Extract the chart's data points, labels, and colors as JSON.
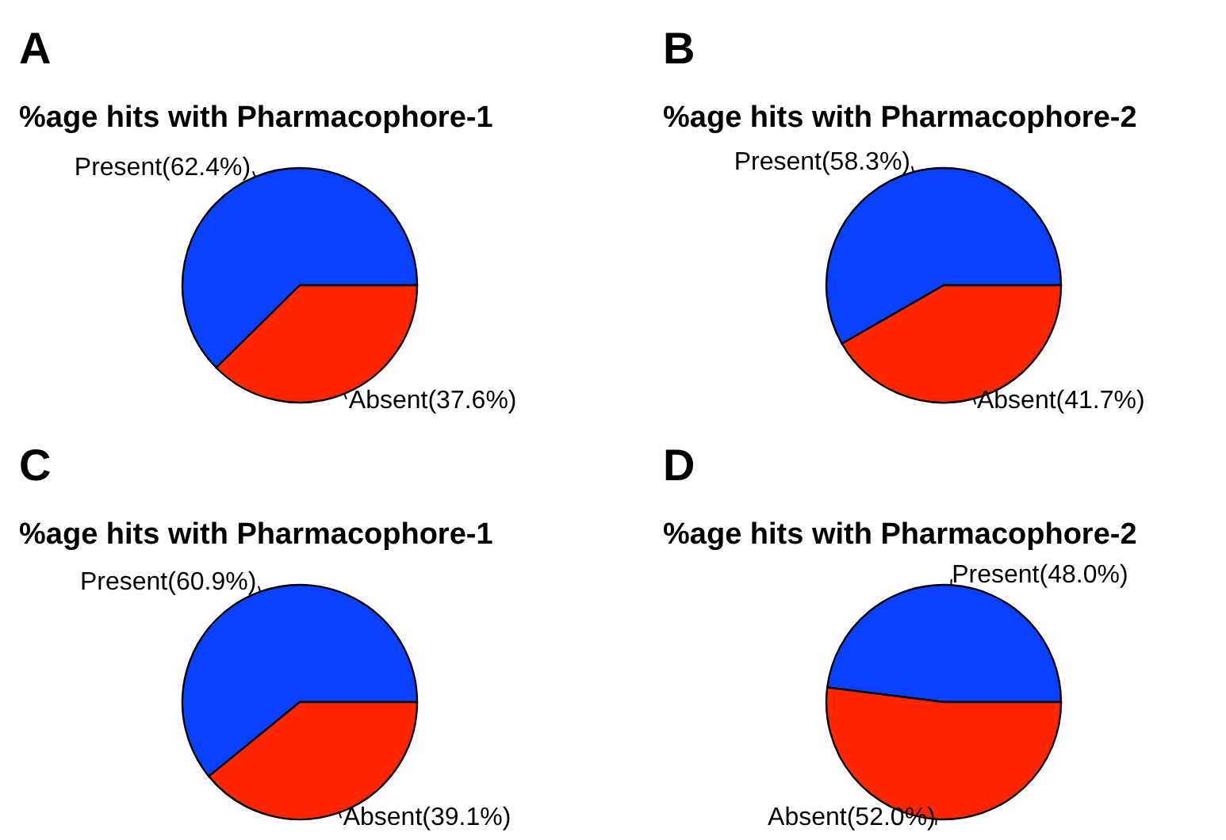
{
  "chart_data": [
    {
      "type": "pie",
      "title": "%age hits with Pharmacophore-1",
      "annotations": [
        "A"
      ],
      "categories": [
        "Present(62.4%)",
        "Absent(37.6%)"
      ],
      "values": [
        62.4,
        37.6
      ],
      "colors": [
        "#0a40ff",
        "#ff2600"
      ]
    },
    {
      "type": "pie",
      "title": "%age hits with Pharmacophore-2",
      "annotations": [
        "B"
      ],
      "categories": [
        "Present(58.3%)",
        "Absent(41.7%)"
      ],
      "values": [
        58.3,
        41.7
      ],
      "colors": [
        "#0a40ff",
        "#ff2600"
      ]
    },
    {
      "type": "pie",
      "title": "%age hits with Pharmacophore-1",
      "annotations": [
        "C"
      ],
      "categories": [
        "Present(60.9%)",
        "Absent(39.1%)"
      ],
      "values": [
        60.9,
        39.1
      ],
      "colors": [
        "#0a40ff",
        "#ff2600"
      ]
    },
    {
      "type": "pie",
      "title": "%age hits with Pharmacophore-2",
      "annotations": [
        "D"
      ],
      "categories": [
        "Present(48.0%)",
        "Absent(52.0%)"
      ],
      "values": [
        48.0,
        52.0
      ],
      "colors": [
        "#0a40ff",
        "#ff2600"
      ]
    }
  ]
}
